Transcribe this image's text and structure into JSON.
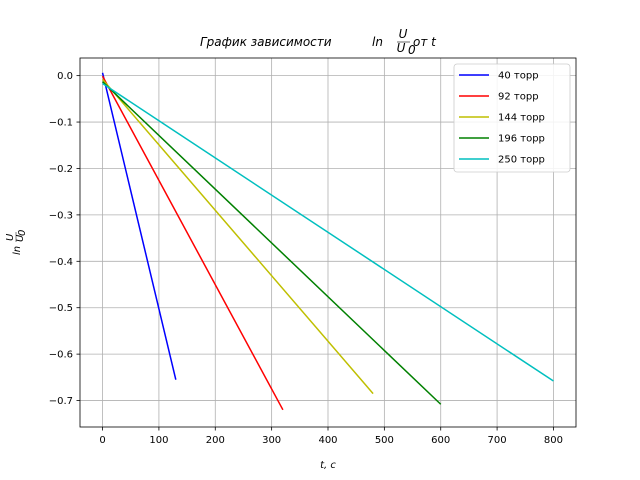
{
  "chart_data": {
    "type": "line",
    "title": "График зависимости ln U/U0 от t",
    "title_main": "График зависимости ",
    "title_ln": "ln",
    "title_num": "U",
    "title_den": "U",
    "title_den_sub": "0",
    "title_tail": " от t",
    "xlabel": "t, c",
    "ylabel": "ln U/U0",
    "ylabel_ln": "ln",
    "ylabel_num": "U",
    "ylabel_den": "U",
    "ylabel_den_sub": "0",
    "xlim": [
      -40,
      840
    ],
    "ylim": [
      -0.757,
      0.038
    ],
    "xticks": [
      0,
      100,
      200,
      300,
      400,
      500,
      600,
      700,
      800
    ],
    "yticks": [
      0.0,
      -0.1,
      -0.2,
      -0.3,
      -0.4,
      -0.5,
      -0.6,
      -0.7
    ],
    "xtick_labels": [
      "0",
      "100",
      "200",
      "300",
      "400",
      "500",
      "600",
      "700",
      "800"
    ],
    "ytick_labels": [
      "0.0",
      "−0.1",
      "−0.2",
      "−0.3",
      "−0.4",
      "−0.5",
      "−0.6",
      "−0.7"
    ],
    "grid": true,
    "legend_position": "top-right",
    "series": [
      {
        "name": "40 торр",
        "color": "#0000ff",
        "x": [
          0,
          130
        ],
        "y": [
          0.006,
          -0.655
        ]
      },
      {
        "name": "92 торр",
        "color": "#ff0000",
        "x": [
          0,
          320
        ],
        "y": [
          -0.001,
          -0.72
        ]
      },
      {
        "name": "144 торр",
        "color": "#bfbf00",
        "x": [
          0,
          480
        ],
        "y": [
          -0.008,
          -0.685
        ]
      },
      {
        "name": "196 торр",
        "color": "#008000",
        "x": [
          0,
          600
        ],
        "y": [
          -0.013,
          -0.708
        ]
      },
      {
        "name": "250 торр",
        "color": "#00bfbf",
        "x": [
          0,
          800
        ],
        "y": [
          -0.017,
          -0.658
        ]
      }
    ]
  }
}
